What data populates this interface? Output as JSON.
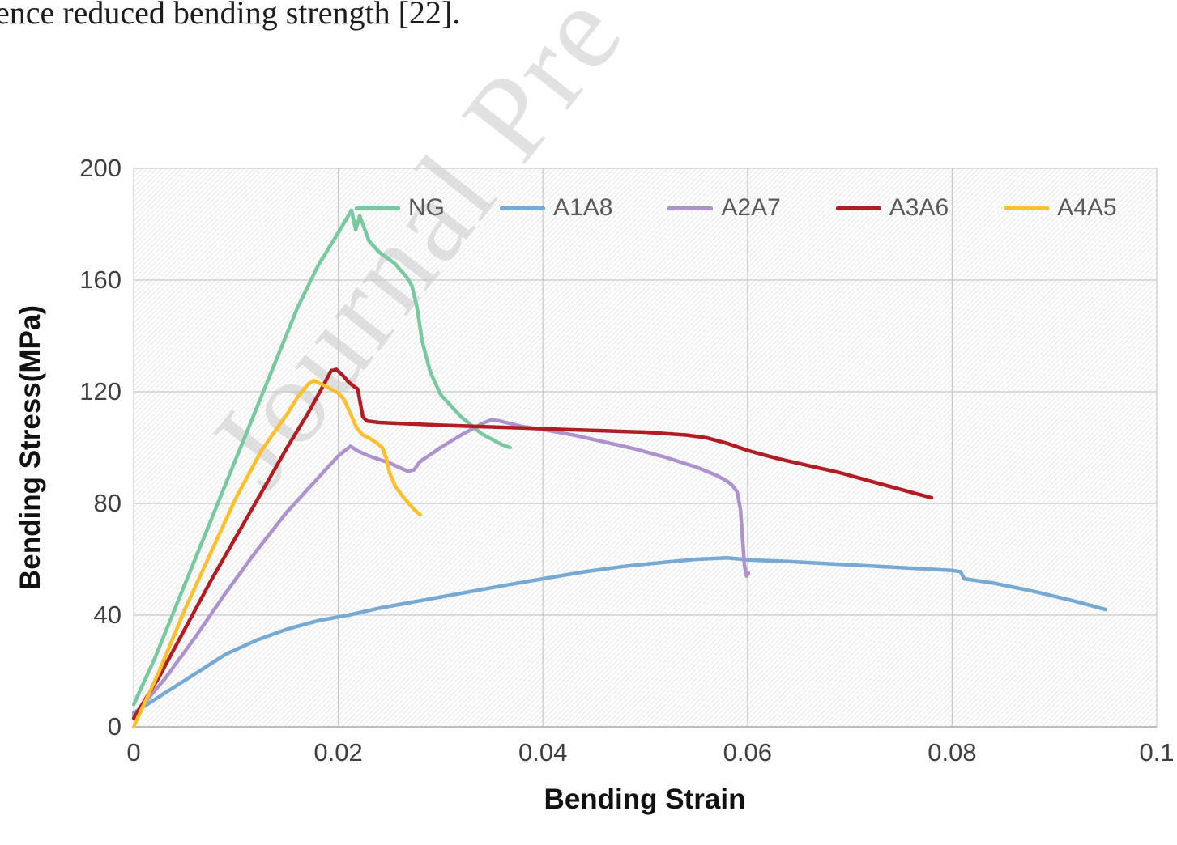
{
  "page": {
    "top_text": "ence reduced bending strength [22].",
    "watermark": "Journal Pre"
  },
  "colors": {
    "grid": "#c8c8c8",
    "axis": "#a8a8a8",
    "hatch": "#e7e7e7",
    "tick_text": "#3f3f3f",
    "legend_text": "#595959",
    "watermark": "#c9c9c9"
  },
  "chart_data": {
    "type": "line",
    "title": "",
    "xlabel": "Bending Strain",
    "ylabel": "Bending Stress(MPa)",
    "xlim": [
      0,
      0.1
    ],
    "ylim": [
      0,
      200
    ],
    "x_ticks": [
      0,
      0.02,
      0.04,
      0.06,
      0.08,
      0.1
    ],
    "x_tick_labels": [
      "0",
      "0.02",
      "0.04",
      "0.06",
      "0.08",
      "0.1"
    ],
    "y_ticks": [
      0,
      40,
      80,
      120,
      160,
      200
    ],
    "y_tick_labels": [
      "0",
      "40",
      "80",
      "120",
      "160",
      "200"
    ],
    "grid": true,
    "legend_position": "top-inside",
    "series": [
      {
        "name": "NG",
        "color": "#79c99e",
        "points": [
          [
            0,
            8
          ],
          [
            0.002,
            24
          ],
          [
            0.004,
            42
          ],
          [
            0.006,
            60
          ],
          [
            0.008,
            78
          ],
          [
            0.01,
            96
          ],
          [
            0.012,
            114
          ],
          [
            0.014,
            132
          ],
          [
            0.016,
            150
          ],
          [
            0.018,
            165
          ],
          [
            0.02,
            177
          ],
          [
            0.0213,
            185
          ],
          [
            0.0217,
            178
          ],
          [
            0.0221,
            183
          ],
          [
            0.023,
            174
          ],
          [
            0.024,
            170
          ],
          [
            0.0255,
            166
          ],
          [
            0.0267,
            161
          ],
          [
            0.0272,
            158
          ],
          [
            0.0277,
            150
          ],
          [
            0.0282,
            138
          ],
          [
            0.029,
            127
          ],
          [
            0.03,
            119
          ],
          [
            0.032,
            111
          ],
          [
            0.034,
            105
          ],
          [
            0.036,
            101
          ],
          [
            0.0368,
            100
          ]
        ]
      },
      {
        "name": "A1A8",
        "color": "#76a9d4",
        "points": [
          [
            0,
            5
          ],
          [
            0.003,
            12
          ],
          [
            0.006,
            19
          ],
          [
            0.009,
            26
          ],
          [
            0.012,
            31
          ],
          [
            0.015,
            35
          ],
          [
            0.018,
            38
          ],
          [
            0.021,
            40
          ],
          [
            0.024,
            42.5
          ],
          [
            0.027,
            44.5
          ],
          [
            0.03,
            46.5
          ],
          [
            0.033,
            48.5
          ],
          [
            0.036,
            50.5
          ],
          [
            0.04,
            53
          ],
          [
            0.044,
            55.5
          ],
          [
            0.048,
            57.5
          ],
          [
            0.052,
            59
          ],
          [
            0.055,
            60
          ],
          [
            0.058,
            60.5
          ],
          [
            0.0595,
            60
          ],
          [
            0.06,
            59.8
          ],
          [
            0.064,
            59.2
          ],
          [
            0.068,
            58.4
          ],
          [
            0.072,
            57.6
          ],
          [
            0.076,
            56.8
          ],
          [
            0.08,
            56
          ],
          [
            0.0808,
            55.6
          ],
          [
            0.0812,
            53
          ],
          [
            0.084,
            51.5
          ],
          [
            0.088,
            48.5
          ],
          [
            0.092,
            45
          ],
          [
            0.095,
            42
          ]
        ]
      },
      {
        "name": "A2A7",
        "color": "#ae92ce",
        "points": [
          [
            0,
            4
          ],
          [
            0.003,
            17
          ],
          [
            0.006,
            32
          ],
          [
            0.009,
            48
          ],
          [
            0.012,
            63
          ],
          [
            0.015,
            77
          ],
          [
            0.018,
            89
          ],
          [
            0.02,
            97
          ],
          [
            0.0212,
            100.5
          ],
          [
            0.0218,
            99
          ],
          [
            0.023,
            97
          ],
          [
            0.025,
            94.5
          ],
          [
            0.0262,
            92.5
          ],
          [
            0.0268,
            91.5
          ],
          [
            0.0274,
            92
          ],
          [
            0.028,
            95
          ],
          [
            0.03,
            100
          ],
          [
            0.032,
            104.5
          ],
          [
            0.034,
            108.5
          ],
          [
            0.035,
            110
          ],
          [
            0.0358,
            109.5
          ],
          [
            0.038,
            107.5
          ],
          [
            0.04,
            106.5
          ],
          [
            0.043,
            104.5
          ],
          [
            0.046,
            102
          ],
          [
            0.049,
            99.5
          ],
          [
            0.052,
            96.5
          ],
          [
            0.055,
            93
          ],
          [
            0.057,
            90
          ],
          [
            0.058,
            88
          ],
          [
            0.0585,
            86.5
          ],
          [
            0.059,
            84
          ],
          [
            0.0593,
            78
          ],
          [
            0.0595,
            68
          ],
          [
            0.0597,
            58
          ],
          [
            0.0599,
            54
          ],
          [
            0.0601,
            55
          ]
        ]
      },
      {
        "name": "A3A6",
        "color": "#b01e23",
        "points": [
          [
            0,
            3
          ],
          [
            0.0025,
            18
          ],
          [
            0.005,
            35
          ],
          [
            0.0075,
            52
          ],
          [
            0.01,
            68
          ],
          [
            0.0125,
            84
          ],
          [
            0.015,
            100
          ],
          [
            0.017,
            112
          ],
          [
            0.0185,
            122
          ],
          [
            0.0193,
            127.5
          ],
          [
            0.0198,
            128
          ],
          [
            0.0204,
            126
          ],
          [
            0.021,
            123.5
          ],
          [
            0.0215,
            122
          ],
          [
            0.0219,
            121
          ],
          [
            0.0221,
            117
          ],
          [
            0.0224,
            111
          ],
          [
            0.0228,
            109.5
          ],
          [
            0.024,
            109
          ],
          [
            0.027,
            108.5
          ],
          [
            0.03,
            108
          ],
          [
            0.034,
            107.5
          ],
          [
            0.038,
            107
          ],
          [
            0.042,
            106.5
          ],
          [
            0.046,
            106
          ],
          [
            0.05,
            105.5
          ],
          [
            0.054,
            104.5
          ],
          [
            0.056,
            103.5
          ],
          [
            0.058,
            101.5
          ],
          [
            0.06,
            99
          ],
          [
            0.063,
            96
          ],
          [
            0.066,
            93.5
          ],
          [
            0.069,
            91
          ],
          [
            0.072,
            88
          ],
          [
            0.075,
            85
          ],
          [
            0.078,
            82
          ]
        ]
      },
      {
        "name": "A4A5",
        "color": "#fdbf2d",
        "points": [
          [
            0,
            0
          ],
          [
            0.0025,
            20
          ],
          [
            0.005,
            42
          ],
          [
            0.0075,
            62
          ],
          [
            0.01,
            82
          ],
          [
            0.0125,
            99
          ],
          [
            0.015,
            112
          ],
          [
            0.016,
            118
          ],
          [
            0.017,
            122.5
          ],
          [
            0.0176,
            124
          ],
          [
            0.0182,
            123
          ],
          [
            0.019,
            121.5
          ],
          [
            0.02,
            119.5
          ],
          [
            0.0206,
            117
          ],
          [
            0.0212,
            112
          ],
          [
            0.0218,
            107
          ],
          [
            0.0224,
            104.5
          ],
          [
            0.023,
            103.5
          ],
          [
            0.0238,
            101.5
          ],
          [
            0.0243,
            100
          ],
          [
            0.0247,
            96
          ],
          [
            0.025,
            91
          ],
          [
            0.0256,
            86
          ],
          [
            0.0263,
            82.5
          ],
          [
            0.027,
            79.5
          ],
          [
            0.0275,
            77.5
          ],
          [
            0.028,
            76
          ]
        ]
      }
    ]
  }
}
